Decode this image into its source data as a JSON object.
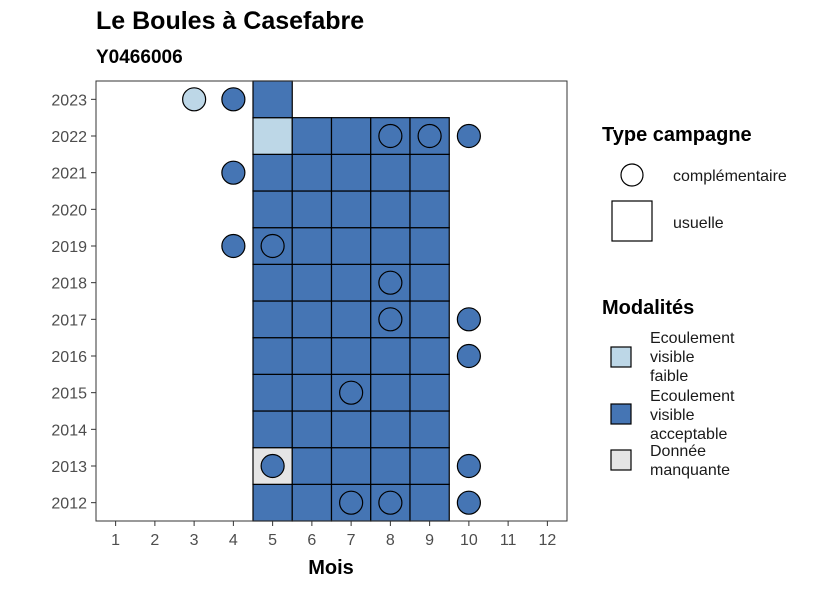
{
  "chart_data": {
    "type": "heatmap",
    "title": "Le Boules à Casefabre",
    "subtitle": "Y0466006",
    "xlabel": "Mois",
    "ylabel": "",
    "x_ticks": [
      1,
      2,
      3,
      4,
      5,
      6,
      7,
      8,
      9,
      10,
      11,
      12
    ],
    "y_ticks": [
      2012,
      2013,
      2014,
      2015,
      2016,
      2017,
      2018,
      2019,
      2020,
      2021,
      2022,
      2023
    ],
    "xlim": [
      0.5,
      12.5
    ],
    "ylim": [
      2011.5,
      2023.5
    ],
    "colors": {
      "faible": "#bdd7e7",
      "acceptable": "#4575b4",
      "manquante": "#e5e5e5"
    },
    "usuelle": [
      {
        "year": 2012,
        "months": [
          5,
          6,
          7,
          8,
          9
        ],
        "modalite": "acceptable"
      },
      {
        "year": 2013,
        "months": [
          5
        ],
        "modalite": "manquante"
      },
      {
        "year": 2013,
        "months": [
          6,
          7,
          8,
          9
        ],
        "modalite": "acceptable"
      },
      {
        "year": 2014,
        "months": [
          5,
          6,
          7,
          8,
          9
        ],
        "modalite": "acceptable"
      },
      {
        "year": 2015,
        "months": [
          5,
          6,
          7,
          8,
          9
        ],
        "modalite": "acceptable"
      },
      {
        "year": 2016,
        "months": [
          5,
          6,
          7,
          8,
          9
        ],
        "modalite": "acceptable"
      },
      {
        "year": 2017,
        "months": [
          5,
          6,
          7,
          8,
          9
        ],
        "modalite": "acceptable"
      },
      {
        "year": 2018,
        "months": [
          5,
          6,
          7,
          8,
          9
        ],
        "modalite": "acceptable"
      },
      {
        "year": 2019,
        "months": [
          5,
          6,
          7,
          8,
          9
        ],
        "modalite": "acceptable"
      },
      {
        "year": 2020,
        "months": [
          5,
          6,
          7,
          8,
          9
        ],
        "modalite": "acceptable"
      },
      {
        "year": 2021,
        "months": [
          5,
          6,
          7,
          8,
          9
        ],
        "modalite": "acceptable"
      },
      {
        "year": 2022,
        "months": [
          5
        ],
        "modalite": "faible"
      },
      {
        "year": 2022,
        "months": [
          6,
          7,
          8,
          9
        ],
        "modalite": "acceptable"
      },
      {
        "year": 2023,
        "months": [
          5
        ],
        "modalite": "acceptable"
      }
    ],
    "complementaire": [
      {
        "year": 2012,
        "month": 7,
        "modalite": "acceptable"
      },
      {
        "year": 2012,
        "month": 8,
        "modalite": "acceptable"
      },
      {
        "year": 2012,
        "month": 10,
        "modalite": "acceptable"
      },
      {
        "year": 2013,
        "month": 5,
        "modalite": "acceptable"
      },
      {
        "year": 2013,
        "month": 10,
        "modalite": "acceptable"
      },
      {
        "year": 2015,
        "month": 7,
        "modalite": "acceptable"
      },
      {
        "year": 2016,
        "month": 10,
        "modalite": "acceptable"
      },
      {
        "year": 2017,
        "month": 8,
        "modalite": "acceptable"
      },
      {
        "year": 2017,
        "month": 10,
        "modalite": "acceptable"
      },
      {
        "year": 2018,
        "month": 8,
        "modalite": "acceptable"
      },
      {
        "year": 2019,
        "month": 4,
        "modalite": "acceptable"
      },
      {
        "year": 2019,
        "month": 5,
        "modalite": "acceptable"
      },
      {
        "year": 2021,
        "month": 4,
        "modalite": "acceptable"
      },
      {
        "year": 2022,
        "month": 8,
        "modalite": "acceptable"
      },
      {
        "year": 2022,
        "month": 9,
        "modalite": "acceptable"
      },
      {
        "year": 2022,
        "month": 10,
        "modalite": "acceptable"
      },
      {
        "year": 2023,
        "month": 3,
        "modalite": "faible"
      },
      {
        "year": 2023,
        "month": 4,
        "modalite": "acceptable"
      }
    ],
    "legend_type": {
      "title": "Type campagne",
      "items": [
        {
          "label": "complémentaire",
          "shape": "circle"
        },
        {
          "label": "usuelle",
          "shape": "square"
        }
      ]
    },
    "legend_modalites": {
      "title": "Modalités",
      "items": [
        {
          "key": "faible",
          "lines": [
            "Ecoulement",
            "visible",
            "faible"
          ]
        },
        {
          "key": "acceptable",
          "lines": [
            "Ecoulement",
            "visible",
            "acceptable"
          ]
        },
        {
          "key": "manquante",
          "lines": [
            "Donnée",
            "manquante"
          ]
        }
      ]
    }
  }
}
